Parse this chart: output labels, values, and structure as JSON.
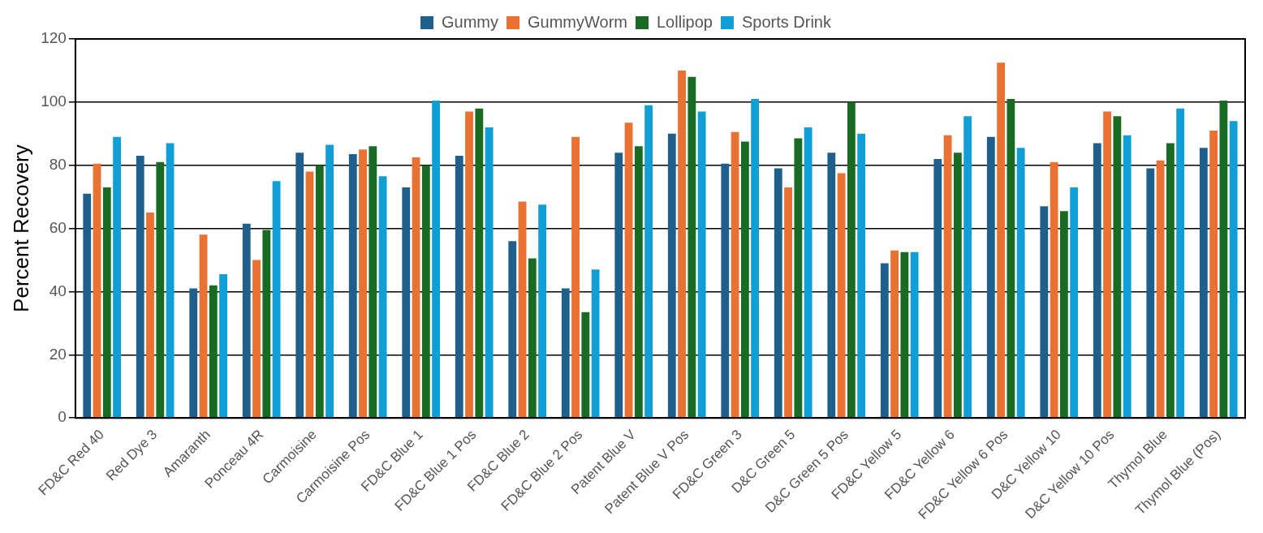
{
  "chart_data": {
    "type": "bar",
    "ylabel": "Percent Recovery",
    "categories": [
      "FD&C Red 40",
      "Red Dye 3",
      "Amaranth",
      "Ponceau 4R",
      "Carmoisine",
      "Carmoisine Pos",
      "FD&C Blue 1",
      "FD&C Blue 1 Pos",
      "FD&C Blue 2",
      "FD&C Blue 2 Pos",
      "Patent Blue V",
      "Patent Blue V Pos",
      "FD&C Green 3",
      "D&C Green 5",
      "D&C Green 5 Pos",
      "FD&C Yellow 5",
      "FD&C Yellow 6",
      "FD&C Yellow 6 Pos",
      "D&C Yellow 10",
      "D&C Yellow 10 Pos",
      "Thymol Blue",
      "Thymol Blue (Pos)"
    ],
    "series": [
      {
        "name": "Gummy",
        "color": "#1f5f8b",
        "values": [
          71,
          83,
          41,
          61.5,
          84,
          83.5,
          73,
          83,
          56,
          41,
          84,
          90,
          80.5,
          79,
          84,
          49,
          82,
          89,
          67,
          87,
          79,
          85.5
        ]
      },
      {
        "name": "GummyWorm",
        "color": "#e97132",
        "values": [
          80.5,
          65,
          58,
          50,
          78,
          85,
          82.5,
          97,
          68.5,
          89,
          93.5,
          110,
          90.5,
          73,
          77.5,
          53,
          89.5,
          112.5,
          81,
          97,
          81.5,
          91
        ]
      },
      {
        "name": "Lollipop",
        "color": "#196b24",
        "values": [
          73,
          81,
          42,
          59.5,
          80,
          86,
          80,
          98,
          50.5,
          33.5,
          86,
          108,
          87.5,
          88.5,
          100,
          52.5,
          84,
          101,
          65.5,
          95.5,
          87,
          100.5
        ]
      },
      {
        "name": "Sports Drink",
        "color": "#0f9ed5",
        "values": [
          89,
          87,
          45.5,
          75,
          86.5,
          76.5,
          100.5,
          92,
          67.5,
          47,
          99,
          97,
          101,
          92,
          90,
          52.5,
          95.5,
          85.5,
          73,
          89.5,
          98,
          94
        ]
      }
    ],
    "ylim": [
      0,
      120
    ],
    "yticks": [
      0,
      20,
      40,
      60,
      80,
      100,
      120
    ],
    "grid": "y",
    "legend": "top"
  }
}
